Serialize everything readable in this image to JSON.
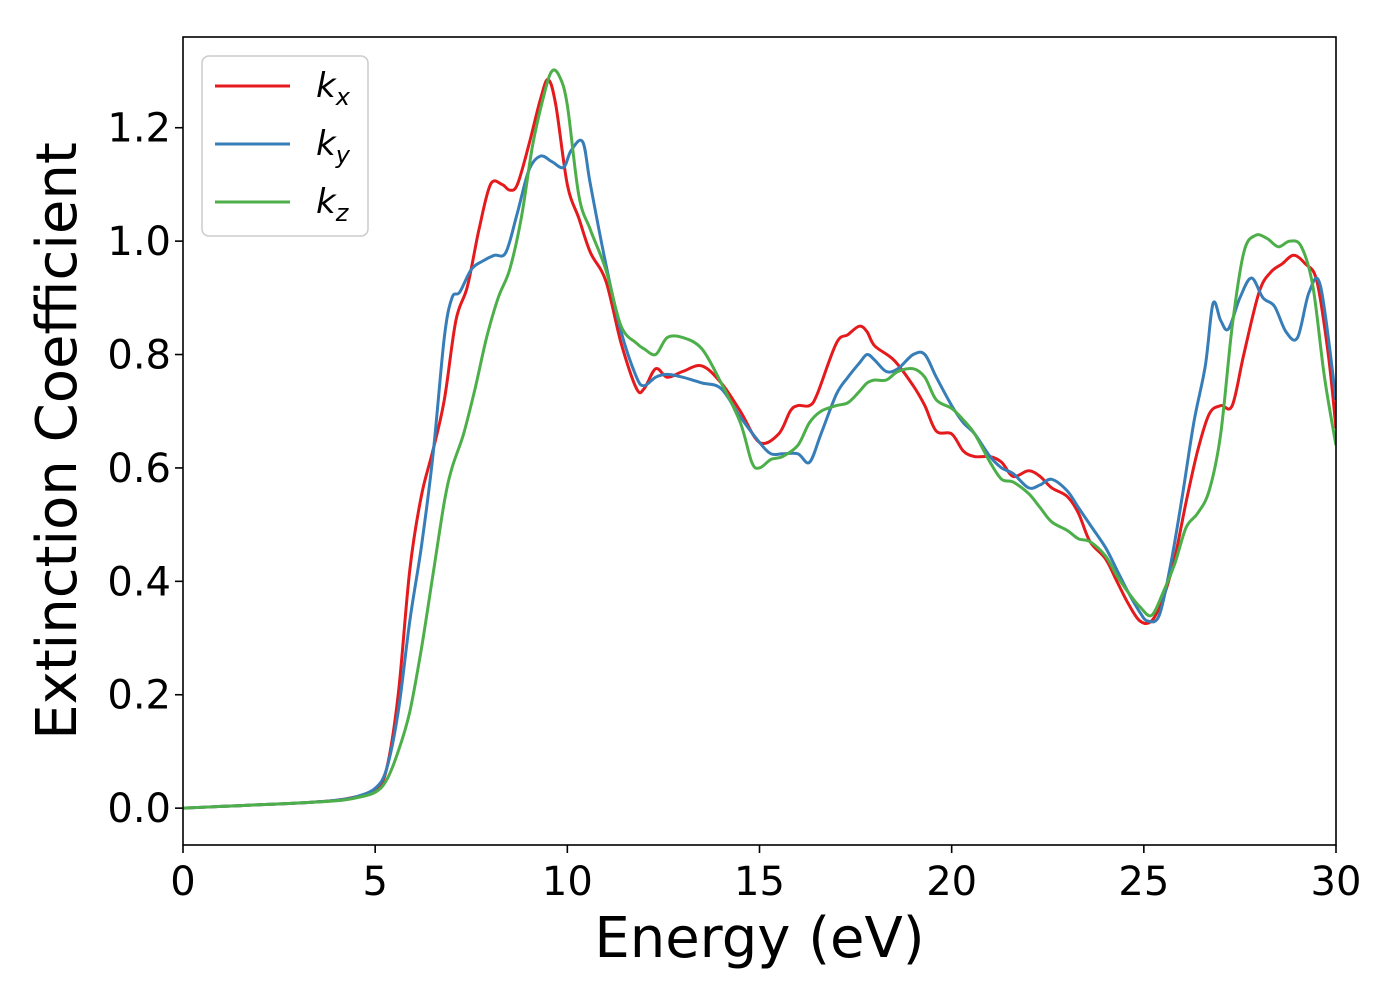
{
  "chart_data": {
    "type": "line",
    "xlabel": "Energy (eV)",
    "ylabel": "Extinction Coefficient",
    "xlim": [
      0,
      30
    ],
    "ylim": [
      -0.065,
      1.36
    ],
    "xticks": [
      0,
      5,
      10,
      15,
      20,
      25,
      30
    ],
    "yticks": [
      0.0,
      0.2,
      0.4,
      0.6,
      0.8,
      1.0,
      1.2
    ],
    "xtick_labels": [
      "0",
      "5",
      "10",
      "15",
      "20",
      "25",
      "30"
    ],
    "ytick_labels": [
      "0.0",
      "0.2",
      "0.4",
      "0.6",
      "0.8",
      "1.0",
      "1.2"
    ],
    "grid": false,
    "legend_position": "top-left",
    "series": [
      {
        "name": "kx",
        "label_base": "k",
        "label_sub": "x",
        "color": "#e41a1c",
        "x": [
          0,
          1,
          2,
          3,
          4,
          4.5,
          5,
          5.3,
          5.6,
          5.9,
          6.2,
          6.5,
          6.8,
          7.1,
          7.4,
          7.7,
          8.0,
          8.3,
          8.5,
          8.7,
          9.0,
          9.3,
          9.5,
          9.7,
          10.0,
          10.3,
          10.6,
          11.0,
          11.4,
          11.8,
          12.0,
          12.3,
          12.6,
          13.0,
          13.5,
          14.0,
          14.5,
          15.0,
          15.5,
          15.8,
          16.0,
          16.3,
          16.5,
          17.0,
          17.3,
          17.6,
          17.8,
          18.0,
          18.5,
          19.0,
          19.3,
          19.6,
          20.0,
          20.3,
          20.6,
          21.0,
          21.3,
          21.6,
          22.0,
          22.3,
          22.6,
          23.0,
          23.3,
          23.6,
          24.0,
          24.3,
          24.6,
          24.9,
          25.2,
          25.5,
          25.8,
          26.1,
          26.4,
          26.7,
          27.0,
          27.3,
          27.6,
          28.0,
          28.3,
          28.6,
          28.9,
          29.2,
          29.5,
          29.8,
          30.0
        ],
        "y": [
          0.0,
          0.003,
          0.006,
          0.009,
          0.014,
          0.02,
          0.03,
          0.07,
          0.2,
          0.42,
          0.55,
          0.63,
          0.72,
          0.86,
          0.92,
          1.02,
          1.1,
          1.1,
          1.09,
          1.1,
          1.17,
          1.25,
          1.285,
          1.24,
          1.1,
          1.04,
          0.98,
          0.93,
          0.82,
          0.74,
          0.74,
          0.775,
          0.76,
          0.77,
          0.78,
          0.75,
          0.7,
          0.645,
          0.66,
          0.7,
          0.71,
          0.71,
          0.73,
          0.82,
          0.835,
          0.85,
          0.84,
          0.815,
          0.79,
          0.745,
          0.71,
          0.665,
          0.66,
          0.63,
          0.62,
          0.62,
          0.61,
          0.585,
          0.595,
          0.585,
          0.565,
          0.55,
          0.52,
          0.47,
          0.44,
          0.4,
          0.36,
          0.33,
          0.33,
          0.37,
          0.44,
          0.54,
          0.63,
          0.695,
          0.71,
          0.71,
          0.8,
          0.91,
          0.945,
          0.96,
          0.975,
          0.96,
          0.93,
          0.8,
          0.67
        ]
      },
      {
        "name": "ky",
        "label_base": "k",
        "label_sub": "y",
        "color": "#377eb8",
        "x": [
          0,
          1,
          2,
          3,
          4,
          4.5,
          5,
          5.3,
          5.6,
          5.9,
          6.2,
          6.5,
          6.8,
          7.0,
          7.2,
          7.5,
          7.8,
          8.1,
          8.4,
          8.7,
          9.0,
          9.3,
          9.6,
          9.9,
          10.1,
          10.4,
          10.6,
          11.0,
          11.4,
          11.8,
          12.0,
          12.3,
          12.6,
          13.0,
          13.5,
          14.0,
          14.5,
          15.0,
          15.3,
          15.6,
          16.0,
          16.3,
          16.6,
          17.0,
          17.3,
          17.6,
          17.8,
          18.0,
          18.3,
          18.6,
          19.0,
          19.3,
          19.6,
          20.0,
          20.3,
          20.6,
          21.0,
          21.3,
          21.6,
          22.0,
          22.3,
          22.6,
          23.0,
          23.3,
          23.6,
          24.0,
          24.3,
          24.6,
          24.9,
          25.1,
          25.4,
          25.7,
          26.0,
          26.3,
          26.6,
          26.8,
          27.0,
          27.2,
          27.5,
          27.8,
          28.1,
          28.4,
          28.7,
          29.0,
          29.3,
          29.6,
          30.0
        ],
        "y": [
          0.0,
          0.003,
          0.006,
          0.009,
          0.014,
          0.02,
          0.035,
          0.07,
          0.17,
          0.33,
          0.46,
          0.62,
          0.83,
          0.9,
          0.91,
          0.95,
          0.965,
          0.975,
          0.98,
          1.05,
          1.125,
          1.15,
          1.14,
          1.13,
          1.16,
          1.175,
          1.1,
          0.96,
          0.84,
          0.76,
          0.745,
          0.76,
          0.765,
          0.76,
          0.75,
          0.74,
          0.69,
          0.645,
          0.625,
          0.625,
          0.625,
          0.61,
          0.66,
          0.73,
          0.76,
          0.785,
          0.8,
          0.79,
          0.77,
          0.775,
          0.8,
          0.8,
          0.76,
          0.71,
          0.68,
          0.66,
          0.62,
          0.6,
          0.59,
          0.565,
          0.57,
          0.58,
          0.56,
          0.53,
          0.5,
          0.46,
          0.42,
          0.38,
          0.345,
          0.33,
          0.34,
          0.43,
          0.55,
          0.68,
          0.78,
          0.89,
          0.86,
          0.845,
          0.9,
          0.935,
          0.9,
          0.885,
          0.84,
          0.83,
          0.91,
          0.92,
          0.72
        ]
      },
      {
        "name": "kz",
        "label_base": "k",
        "label_sub": "z",
        "color": "#4daf4a",
        "x": [
          0,
          1,
          2,
          3,
          4,
          4.5,
          5,
          5.3,
          5.6,
          5.9,
          6.2,
          6.5,
          6.8,
          7.0,
          7.3,
          7.6,
          7.9,
          8.2,
          8.5,
          8.8,
          9.1,
          9.4,
          9.6,
          9.8,
          10.0,
          10.3,
          10.6,
          11.0,
          11.4,
          11.8,
          12.0,
          12.3,
          12.6,
          13.0,
          13.5,
          14.0,
          14.5,
          14.8,
          15.0,
          15.3,
          15.6,
          16.0,
          16.3,
          16.6,
          17.0,
          17.3,
          17.6,
          17.8,
          18.0,
          18.3,
          18.6,
          19.0,
          19.3,
          19.6,
          20.0,
          20.3,
          20.6,
          21.0,
          21.3,
          21.6,
          22.0,
          22.3,
          22.6,
          23.0,
          23.3,
          23.6,
          24.0,
          24.3,
          24.6,
          24.9,
          25.2,
          25.5,
          25.8,
          26.1,
          26.4,
          26.7,
          27.0,
          27.3,
          27.6,
          27.9,
          28.2,
          28.5,
          28.8,
          29.1,
          29.4,
          29.7,
          30.0
        ],
        "y": [
          0.0,
          0.003,
          0.006,
          0.009,
          0.013,
          0.018,
          0.028,
          0.05,
          0.1,
          0.17,
          0.28,
          0.41,
          0.54,
          0.6,
          0.66,
          0.74,
          0.83,
          0.9,
          0.95,
          1.04,
          1.17,
          1.26,
          1.3,
          1.29,
          1.24,
          1.08,
          1.02,
          0.95,
          0.85,
          0.82,
          0.81,
          0.8,
          0.83,
          0.83,
          0.81,
          0.75,
          0.68,
          0.61,
          0.6,
          0.615,
          0.62,
          0.64,
          0.68,
          0.7,
          0.71,
          0.715,
          0.735,
          0.75,
          0.755,
          0.755,
          0.77,
          0.775,
          0.76,
          0.72,
          0.705,
          0.685,
          0.66,
          0.61,
          0.58,
          0.575,
          0.555,
          0.53,
          0.505,
          0.49,
          0.475,
          0.47,
          0.445,
          0.41,
          0.38,
          0.355,
          0.34,
          0.38,
          0.43,
          0.495,
          0.52,
          0.56,
          0.66,
          0.85,
          0.98,
          1.01,
          1.005,
          0.99,
          1.0,
          0.99,
          0.92,
          0.76,
          0.64
        ]
      }
    ]
  }
}
